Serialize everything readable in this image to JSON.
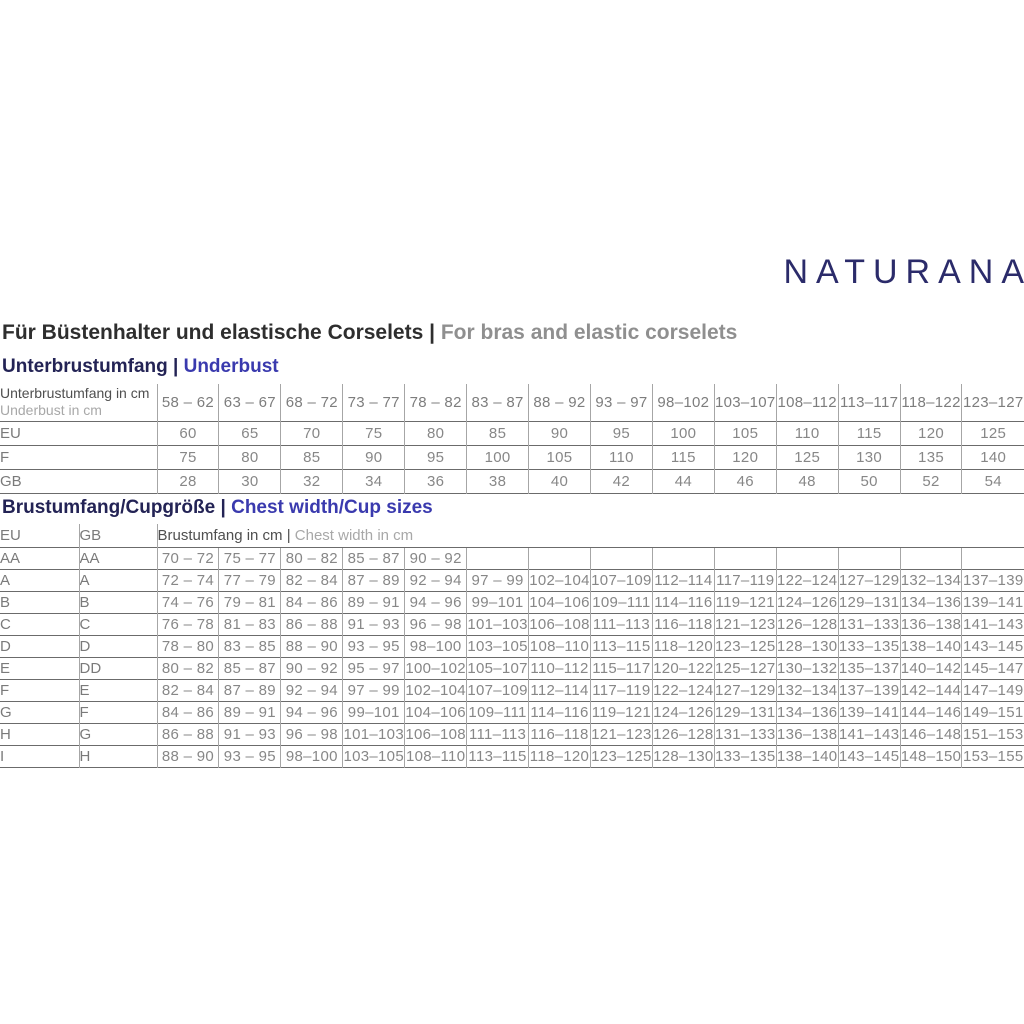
{
  "brand": {
    "logo_text": "NATURANA"
  },
  "colors": {
    "brand_navy": "#2b2b6a",
    "heading_navy": "#232355",
    "heading_blue": "#3a3aae",
    "title_dark": "#2e2e2e",
    "title_gray": "#8f8f8f",
    "table_text_gray": "#878787",
    "table_header_dark": "#4f4f4f",
    "table_header_light": "#a8a8a8",
    "row_line": "#6b6b6b",
    "column_line": "#a6a6a6"
  },
  "page_title": {
    "de": "Für Büstenhalter und elastische Corselets",
    "sep": " | ",
    "en": "For bras and elastic corselets"
  },
  "underbust": {
    "heading_de": "Unterbrustumfang",
    "heading_sep": " | ",
    "heading_en": "Underbust",
    "table": {
      "row_header_de": "Unterbrustumfang in cm",
      "row_header_en": "Underbust in cm",
      "col_headers": [
        "58 – 62",
        "63 – 67",
        "68 – 72",
        "73 – 77",
        "78 – 82",
        "83 – 87",
        "88 – 92",
        "93 – 97",
        "98–102",
        "103–107",
        "108–112",
        "113–117",
        "118–122",
        "123–127"
      ],
      "rows": [
        {
          "label": "EU",
          "values": [
            "60",
            "65",
            "70",
            "75",
            "80",
            "85",
            "90",
            "95",
            "100",
            "105",
            "110",
            "115",
            "120",
            "125"
          ]
        },
        {
          "label": "F",
          "values": [
            "75",
            "80",
            "85",
            "90",
            "95",
            "100",
            "105",
            "110",
            "115",
            "120",
            "125",
            "130",
            "135",
            "140"
          ]
        },
        {
          "label": "GB",
          "values": [
            "28",
            "30",
            "32",
            "34",
            "36",
            "38",
            "40",
            "42",
            "44",
            "46",
            "48",
            "50",
            "52",
            "54"
          ]
        }
      ]
    }
  },
  "cup": {
    "heading_de": "Brustumfang/Cupgröße",
    "heading_sep": " | ",
    "heading_en": "Chest width/Cup sizes",
    "table": {
      "col1_header": "EU",
      "col2_header": "GB",
      "span_header_de": "Brustumfang in cm",
      "span_header_sep": " | ",
      "span_header_en": "Chest width in cm",
      "rows": [
        {
          "eu": "AA",
          "gb": "AA",
          "values": [
            "70 – 72",
            "75 – 77",
            "80 – 82",
            "85 – 87",
            "90 – 92",
            "",
            "",
            "",
            "",
            "",
            "",
            "",
            "",
            ""
          ]
        },
        {
          "eu": "A",
          "gb": "A",
          "values": [
            "72 – 74",
            "77 – 79",
            "82 – 84",
            "87 – 89",
            "92 – 94",
            "97 – 99",
            "102–104",
            "107–109",
            "112–114",
            "117–119",
            "122–124",
            "127–129",
            "132–134",
            "137–139"
          ]
        },
        {
          "eu": "B",
          "gb": "B",
          "values": [
            "74 – 76",
            "79 – 81",
            "84 – 86",
            "89 – 91",
            "94 – 96",
            "99–101",
            "104–106",
            "109–111",
            "114–116",
            "119–121",
            "124–126",
            "129–131",
            "134–136",
            "139–141"
          ]
        },
        {
          "eu": "C",
          "gb": "C",
          "values": [
            "76 – 78",
            "81 – 83",
            "86 – 88",
            "91 – 93",
            "96 – 98",
            "101–103",
            "106–108",
            "111–113",
            "116–118",
            "121–123",
            "126–128",
            "131–133",
            "136–138",
            "141–143"
          ]
        },
        {
          "eu": "D",
          "gb": "D",
          "values": [
            "78 – 80",
            "83 – 85",
            "88 – 90",
            "93 – 95",
            "98–100",
            "103–105",
            "108–110",
            "113–115",
            "118–120",
            "123–125",
            "128–130",
            "133–135",
            "138–140",
            "143–145"
          ]
        },
        {
          "eu": "E",
          "gb": "DD",
          "values": [
            "80 – 82",
            "85 – 87",
            "90 – 92",
            "95 – 97",
            "100–102",
            "105–107",
            "110–112",
            "115–117",
            "120–122",
            "125–127",
            "130–132",
            "135–137",
            "140–142",
            "145–147"
          ]
        },
        {
          "eu": "F",
          "gb": "E",
          "values": [
            "82 – 84",
            "87 – 89",
            "92 – 94",
            "97 – 99",
            "102–104",
            "107–109",
            "112–114",
            "117–119",
            "122–124",
            "127–129",
            "132–134",
            "137–139",
            "142–144",
            "147–149"
          ]
        },
        {
          "eu": "G",
          "gb": "F",
          "values": [
            "84 – 86",
            "89 – 91",
            "94 – 96",
            "99–101",
            "104–106",
            "109–111",
            "114–116",
            "119–121",
            "124–126",
            "129–131",
            "134–136",
            "139–141",
            "144–146",
            "149–151"
          ]
        },
        {
          "eu": "H",
          "gb": "G",
          "values": [
            "86 – 88",
            "91 – 93",
            "96 – 98",
            "101–103",
            "106–108",
            "111–113",
            "116–118",
            "121–123",
            "126–128",
            "131–133",
            "136–138",
            "141–143",
            "146–148",
            "151–153"
          ]
        },
        {
          "eu": "I",
          "gb": "H",
          "values": [
            "88 – 90",
            "93 – 95",
            "98–100",
            "103–105",
            "108–110",
            "113–115",
            "118–120",
            "123–125",
            "128–130",
            "133–135",
            "138–140",
            "143–145",
            "148–150",
            "153–155"
          ]
        }
      ]
    }
  }
}
